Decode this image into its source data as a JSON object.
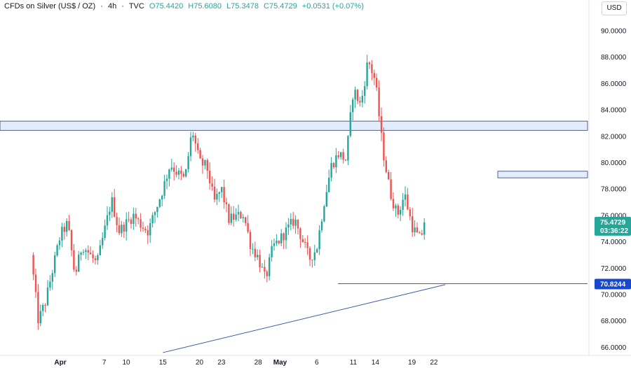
{
  "header": {
    "symbol": "CFDs on Silver (US$ / OZ)",
    "interval": "4h",
    "source": "TVC",
    "open": "O75.4420",
    "high": "H75.6080",
    "low": "L75.3478",
    "close": "C75.4729",
    "change": "+0.0531 (+0.07%)"
  },
  "currency_button": "USD",
  "price_tags": {
    "last_price": "75.4729",
    "countdown": "03:36:22",
    "line_level": "70.8244"
  },
  "colors": {
    "up": "#26a69a",
    "down": "#ef5350",
    "zone_fill": "#e3ecfb",
    "zone_stroke": "#2f3a6a",
    "line": "#3f5aa8",
    "tag_blue": "#1848cc",
    "tag_green": "#26a69a"
  },
  "chart_data": {
    "type": "candlestick",
    "title": "CFDs on Silver (US$ / OZ) · 4h · TVC",
    "ylim": [
      65.0,
      91.5
    ],
    "y_ticks": [
      "90.0000",
      "88.0000",
      "86.0000",
      "84.0000",
      "82.0000",
      "80.0000",
      "78.0000",
      "76.0000",
      "74.0000",
      "72.0000",
      "70.0000",
      "68.0000",
      "66.0000"
    ],
    "x_ticks": [
      "Apr",
      "7",
      "10",
      "15",
      "20",
      "23",
      "28",
      "May",
      "6",
      "11",
      "14",
      "19",
      "22"
    ],
    "zones": [
      {
        "from": 82.45,
        "to": 83.15
      },
      {
        "from": 78.85,
        "to": 79.35
      }
    ],
    "horizontal_level": 70.82,
    "trendline": {
      "from_date": "Apr 15",
      "from_price": 65.6,
      "to_date": "May 22",
      "to_price": 70.75
    },
    "anchors": [
      {
        "date": "Mar 28",
        "price": 73.0
      },
      {
        "date": "Mar 29",
        "price": 68.0
      },
      {
        "date": "Mar 30",
        "price": 69.5
      },
      {
        "date": "Apr 1",
        "price": 74.5
      },
      {
        "date": "Apr 2",
        "price": 75.4
      },
      {
        "date": "Apr 3",
        "price": 71.4
      },
      {
        "date": "Apr 4",
        "price": 73.8
      },
      {
        "date": "Apr 6",
        "price": 72.3
      },
      {
        "date": "Apr 8",
        "price": 77.2
      },
      {
        "date": "Apr 9",
        "price": 74.8
      },
      {
        "date": "Apr 11",
        "price": 76.0
      },
      {
        "date": "Apr 12",
        "price": 75.3
      },
      {
        "date": "Apr 13",
        "price": 74.8
      },
      {
        "date": "Apr 15",
        "price": 78.0
      },
      {
        "date": "Apr 16",
        "price": 79.9
      },
      {
        "date": "Apr 17",
        "price": 79.2
      },
      {
        "date": "Apr 18",
        "price": 78.7
      },
      {
        "date": "Apr 19",
        "price": 82.5
      },
      {
        "date": "Apr 20",
        "price": 80.0
      },
      {
        "date": "Apr 21",
        "price": 79.7
      },
      {
        "date": "Apr 22",
        "price": 77.0
      },
      {
        "date": "Apr 23",
        "price": 78.0
      },
      {
        "date": "Apr 24",
        "price": 75.7
      },
      {
        "date": "Apr 26",
        "price": 76.1
      },
      {
        "date": "Apr 27",
        "price": 73.7
      },
      {
        "date": "Apr 28",
        "price": 72.8
      },
      {
        "date": "Apr 29",
        "price": 71.1
      },
      {
        "date": "Apr 30",
        "price": 73.6
      },
      {
        "date": "May 1",
        "price": 74.2
      },
      {
        "date": "May 3",
        "price": 75.7
      },
      {
        "date": "May 5",
        "price": 72.7
      },
      {
        "date": "May 6",
        "price": 73.5
      },
      {
        "date": "May 7",
        "price": 77.0
      },
      {
        "date": "May 8",
        "price": 79.8
      },
      {
        "date": "May 9",
        "price": 80.7
      },
      {
        "date": "May 10",
        "price": 80.2
      },
      {
        "date": "May 11",
        "price": 85.6
      },
      {
        "date": "May 12",
        "price": 84.3
      },
      {
        "date": "May 13",
        "price": 87.8
      },
      {
        "date": "May 14",
        "price": 86.2
      },
      {
        "date": "May 15",
        "price": 81.0
      },
      {
        "date": "May 16",
        "price": 77.8
      },
      {
        "date": "May 17",
        "price": 76.0
      },
      {
        "date": "May 18",
        "price": 77.6
      },
      {
        "date": "May 19",
        "price": 75.2
      },
      {
        "date": "May 20",
        "price": 74.2
      },
      {
        "date": "May 21",
        "price": 75.47
      }
    ]
  }
}
